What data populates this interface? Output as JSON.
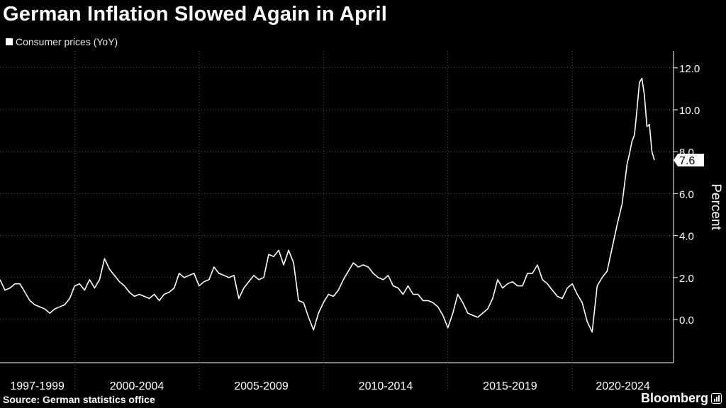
{
  "title": "German Inflation Slowed Again in April",
  "legend_label": "Consumer prices (YoY)",
  "source": "Source: German statistics office",
  "brand": "Bloomberg",
  "colors": {
    "background": "#000000",
    "line": "#ffffff",
    "grid": "#555555"
  },
  "chart_data": {
    "type": "line",
    "title": "German Inflation Slowed Again in April",
    "xlabel": "",
    "ylabel": "Percent",
    "ylim": [
      -1.6,
      12.7
    ],
    "yticks": [
      0.0,
      2.0,
      4.0,
      6.0,
      8.0,
      10.0,
      12.0
    ],
    "ytick_labels": [
      "0.0",
      "2.0",
      "4.0",
      "6.0",
      "8.0",
      "10.0",
      "12.0"
    ],
    "xlim": [
      1997.0,
      2023.5
    ],
    "x_groups": [
      {
        "label": "1997-1999",
        "start": 1997,
        "end": 2000
      },
      {
        "label": "2000-2004",
        "start": 2000,
        "end": 2005
      },
      {
        "label": "2005-2009",
        "start": 2005,
        "end": 2010
      },
      {
        "label": "2010-2014",
        "start": 2010,
        "end": 2015
      },
      {
        "label": "2015-2019",
        "start": 2015,
        "end": 2020
      },
      {
        "label": "2020-2024",
        "start": 2020,
        "end": 2025
      }
    ],
    "last_value_label": "7.6",
    "series": [
      {
        "name": "Consumer prices (YoY)",
        "points": [
          [
            1997.0,
            1.9
          ],
          [
            1997.2,
            1.4
          ],
          [
            1997.4,
            1.5
          ],
          [
            1997.6,
            1.7
          ],
          [
            1997.8,
            1.7
          ],
          [
            1998.0,
            1.3
          ],
          [
            1998.2,
            0.9
          ],
          [
            1998.4,
            0.7
          ],
          [
            1998.6,
            0.6
          ],
          [
            1998.8,
            0.5
          ],
          [
            1999.0,
            0.3
          ],
          [
            1999.2,
            0.5
          ],
          [
            1999.4,
            0.6
          ],
          [
            1999.6,
            0.7
          ],
          [
            1999.8,
            1.0
          ],
          [
            2000.0,
            1.6
          ],
          [
            2000.2,
            1.7
          ],
          [
            2000.4,
            1.4
          ],
          [
            2000.6,
            1.9
          ],
          [
            2000.8,
            1.5
          ],
          [
            2001.0,
            1.9
          ],
          [
            2001.2,
            2.9
          ],
          [
            2001.4,
            2.4
          ],
          [
            2001.6,
            2.1
          ],
          [
            2001.8,
            1.8
          ],
          [
            2002.0,
            1.6
          ],
          [
            2002.2,
            1.3
          ],
          [
            2002.4,
            1.1
          ],
          [
            2002.6,
            1.2
          ],
          [
            2002.8,
            1.1
          ],
          [
            2003.0,
            1.0
          ],
          [
            2003.2,
            1.2
          ],
          [
            2003.4,
            0.9
          ],
          [
            2003.6,
            1.2
          ],
          [
            2003.8,
            1.3
          ],
          [
            2004.0,
            1.5
          ],
          [
            2004.2,
            2.2
          ],
          [
            2004.4,
            2.0
          ],
          [
            2004.6,
            2.1
          ],
          [
            2004.8,
            2.2
          ],
          [
            2005.0,
            1.6
          ],
          [
            2005.2,
            1.8
          ],
          [
            2005.4,
            1.9
          ],
          [
            2005.6,
            2.5
          ],
          [
            2005.8,
            2.2
          ],
          [
            2006.0,
            2.1
          ],
          [
            2006.2,
            2.0
          ],
          [
            2006.4,
            2.1
          ],
          [
            2006.6,
            1.0
          ],
          [
            2006.8,
            1.5
          ],
          [
            2007.0,
            1.8
          ],
          [
            2007.2,
            2.1
          ],
          [
            2007.4,
            1.9
          ],
          [
            2007.6,
            2.0
          ],
          [
            2007.8,
            3.1
          ],
          [
            2008.0,
            3.0
          ],
          [
            2008.2,
            3.3
          ],
          [
            2008.4,
            2.6
          ],
          [
            2008.6,
            3.3
          ],
          [
            2008.8,
            2.7
          ],
          [
            2009.0,
            0.9
          ],
          [
            2009.2,
            0.8
          ],
          [
            2009.4,
            0.1
          ],
          [
            2009.6,
            -0.5
          ],
          [
            2009.8,
            0.3
          ],
          [
            2010.0,
            0.8
          ],
          [
            2010.2,
            1.2
          ],
          [
            2010.4,
            1.1
          ],
          [
            2010.6,
            1.4
          ],
          [
            2010.8,
            1.9
          ],
          [
            2011.0,
            2.3
          ],
          [
            2011.2,
            2.7
          ],
          [
            2011.4,
            2.5
          ],
          [
            2011.6,
            2.6
          ],
          [
            2011.8,
            2.5
          ],
          [
            2012.0,
            2.2
          ],
          [
            2012.2,
            2.0
          ],
          [
            2012.4,
            1.9
          ],
          [
            2012.6,
            2.1
          ],
          [
            2012.8,
            1.6
          ],
          [
            2013.0,
            1.5
          ],
          [
            2013.2,
            1.2
          ],
          [
            2013.4,
            1.6
          ],
          [
            2013.6,
            1.2
          ],
          [
            2013.8,
            1.2
          ],
          [
            2014.0,
            0.9
          ],
          [
            2014.2,
            0.9
          ],
          [
            2014.4,
            0.8
          ],
          [
            2014.6,
            0.6
          ],
          [
            2014.8,
            0.2
          ],
          [
            2015.0,
            -0.4
          ],
          [
            2015.2,
            0.3
          ],
          [
            2015.4,
            1.2
          ],
          [
            2015.6,
            0.8
          ],
          [
            2015.8,
            0.3
          ],
          [
            2016.0,
            0.2
          ],
          [
            2016.2,
            0.1
          ],
          [
            2016.4,
            0.3
          ],
          [
            2016.6,
            0.5
          ],
          [
            2016.8,
            1.0
          ],
          [
            2017.0,
            1.9
          ],
          [
            2017.2,
            1.5
          ],
          [
            2017.4,
            1.7
          ],
          [
            2017.6,
            1.8
          ],
          [
            2017.8,
            1.6
          ],
          [
            2018.0,
            1.6
          ],
          [
            2018.2,
            2.2
          ],
          [
            2018.4,
            2.2
          ],
          [
            2018.6,
            2.6
          ],
          [
            2018.8,
            1.9
          ],
          [
            2019.0,
            1.7
          ],
          [
            2019.2,
            1.4
          ],
          [
            2019.4,
            1.1
          ],
          [
            2019.6,
            1.0
          ],
          [
            2019.8,
            1.5
          ],
          [
            2020.0,
            1.7
          ],
          [
            2020.2,
            1.2
          ],
          [
            2020.4,
            0.8
          ],
          [
            2020.6,
            -0.1
          ],
          [
            2020.8,
            -0.6
          ],
          [
            2021.0,
            1.6
          ],
          [
            2021.2,
            2.0
          ],
          [
            2021.4,
            2.3
          ],
          [
            2021.6,
            3.4
          ],
          [
            2021.8,
            4.5
          ],
          [
            2022.0,
            5.5
          ],
          [
            2022.2,
            7.4
          ],
          [
            2022.3,
            7.9
          ],
          [
            2022.4,
            8.5
          ],
          [
            2022.5,
            8.8
          ],
          [
            2022.6,
            10.0
          ],
          [
            2022.7,
            11.3
          ],
          [
            2022.8,
            11.5
          ],
          [
            2022.9,
            10.7
          ],
          [
            2023.0,
            9.2
          ],
          [
            2023.1,
            9.3
          ],
          [
            2023.2,
            8.0
          ],
          [
            2023.3,
            7.6
          ]
        ]
      }
    ]
  }
}
